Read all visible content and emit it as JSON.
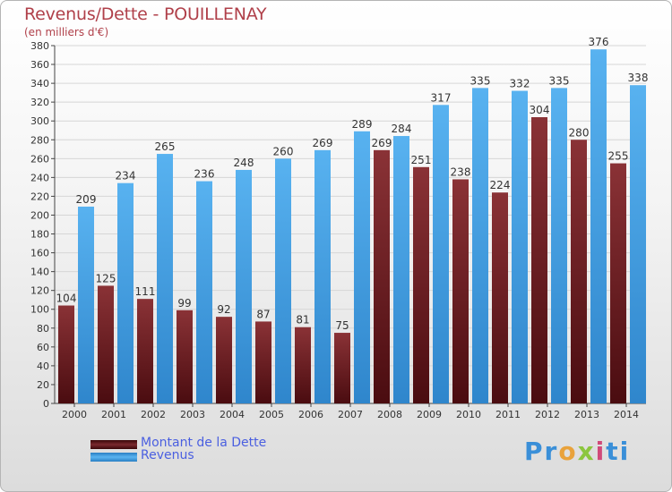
{
  "header": {
    "title": "Revenus/Dette - POUILLENAY",
    "subtitle": "(en milliers d'€)"
  },
  "legend": {
    "debt_label": "Montant de la Dette",
    "revenue_label": "Revenus"
  },
  "logo": {
    "text": "Proxiti"
  },
  "colors": {
    "debt": "#7a2a2e",
    "revenue": "#4aa3e6",
    "title": "#b0404a"
  },
  "chart_data": {
    "type": "bar",
    "title": "Revenus/Dette - POUILLENAY",
    "subtitle": "(en milliers d'€)",
    "xlabel": "",
    "ylabel": "",
    "ylim": [
      0,
      380
    ],
    "yticks": [
      0,
      20,
      40,
      60,
      80,
      100,
      120,
      140,
      160,
      180,
      200,
      220,
      240,
      260,
      280,
      300,
      320,
      340,
      360,
      380
    ],
    "grid": true,
    "legend": "bottom-left",
    "categories": [
      "2000",
      "2001",
      "2002",
      "2003",
      "2004",
      "2005",
      "2006",
      "2007",
      "2008",
      "2009",
      "2010",
      "2011",
      "2012",
      "2013",
      "2014"
    ],
    "series": [
      {
        "name": "Montant de la Dette",
        "values": [
          104,
          125,
          111,
          99,
          92,
          87,
          81,
          75,
          269,
          251,
          238,
          224,
          304,
          280,
          255
        ]
      },
      {
        "name": "Revenus",
        "values": [
          209,
          234,
          265,
          236,
          248,
          260,
          269,
          289,
          284,
          317,
          335,
          332,
          335,
          376,
          338
        ]
      }
    ]
  }
}
